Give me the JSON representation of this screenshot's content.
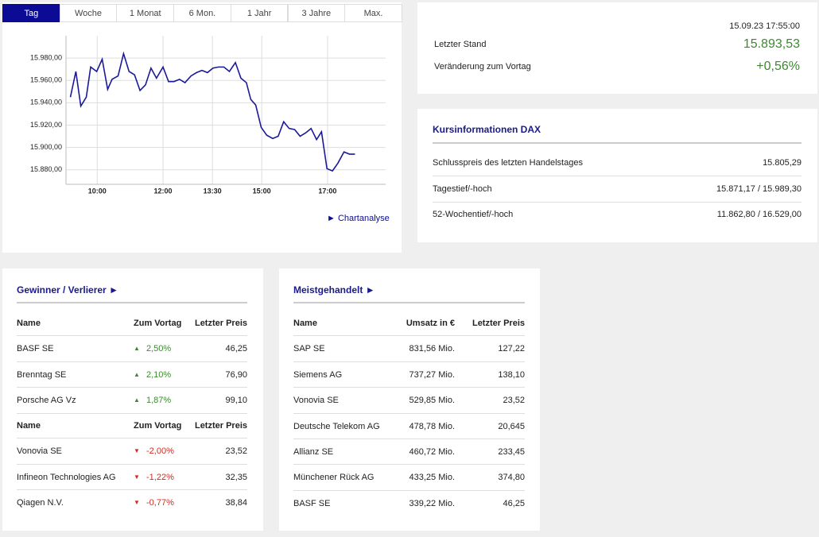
{
  "tabs": [
    "Tag",
    "Woche",
    "1 Monat",
    "6 Mon.",
    "1 Jahr",
    "3 Jahre",
    "Max."
  ],
  "chart_data": {
    "type": "line",
    "x": [
      551,
      561,
      570,
      580,
      588,
      599,
      609,
      619,
      627,
      638,
      648,
      658,
      668,
      678,
      688,
      698,
      708,
      720,
      730,
      740,
      750,
      760,
      771,
      781,
      791,
      801,
      811,
      821,
      831,
      841,
      852,
      862,
      872,
      880,
      889,
      899,
      909,
      920,
      930,
      940,
      950,
      960,
      970,
      980,
      990,
      1000,
      1009,
      1019,
      1029,
      1039,
      1050,
      1060,
      1070
    ],
    "values": [
      15945,
      15968,
      15937,
      15945,
      15972,
      15968,
      15979,
      15952,
      15961,
      15964,
      15984,
      15968,
      15965,
      15951,
      15956,
      15971,
      15962,
      15972,
      15959,
      15959,
      15961,
      15958,
      15964,
      15967,
      15969,
      15967,
      15971,
      15972,
      15972,
      15968,
      15976,
      15962,
      15958,
      15943,
      15938,
      15918,
      15911,
      15908,
      15910,
      15923,
      15917,
      15916,
      15910,
      15913,
      15917,
      15907,
      15914,
      15881,
      15879,
      15886,
      15896,
      15894,
      15894
    ],
    "color": "#1a1a99",
    "xlim": [
      543,
      1126
    ],
    "xticks": [
      {
        "value": 600,
        "label": "10:00"
      },
      {
        "value": 720,
        "label": "12:00"
      },
      {
        "value": 810,
        "label": "13:30"
      },
      {
        "value": 900,
        "label": "15:00"
      },
      {
        "value": 1020,
        "label": "17:00"
      }
    ],
    "ylim": [
      15867,
      16000
    ],
    "yticks": [
      {
        "value": 15880,
        "label": "15.880,00"
      },
      {
        "value": 15900,
        "label": "15.900,00"
      },
      {
        "value": 15920,
        "label": "15.920,00"
      },
      {
        "value": 15940,
        "label": "15.940,00"
      },
      {
        "value": 15960,
        "label": "15.960,00"
      },
      {
        "value": 15980,
        "label": "15.980,00"
      }
    ],
    "grid": true
  },
  "chart_link": "Chartanalyse",
  "quote": {
    "timestamp": "15.09.23 17:55:00",
    "rows": [
      [
        "Letzter Stand",
        "15.893,53"
      ],
      [
        "Veränderung zum Vortag",
        "+0,56%"
      ]
    ]
  },
  "kursinfo": {
    "title": "Kursinformationen DAX",
    "rows": [
      [
        "Schlusspreis des letzten Handelstages",
        "15.805,29"
      ],
      [
        "Tagestief/-hoch",
        "15.871,17 / 15.989,30"
      ],
      [
        "52-Wochentief/-hoch",
        "11.862,80 / 16.529,00"
      ]
    ]
  },
  "movers": {
    "title": "Gewinner / Verlierer",
    "gainers": {
      "header": [
        "Name",
        "Zum Vortag",
        "Letzter Preis"
      ],
      "rows": [
        [
          "BASF SE",
          "2,50%",
          "46,25"
        ],
        [
          "Brenntag SE",
          "2,10%",
          "76,90"
        ],
        [
          "Porsche AG Vz",
          "1,87%",
          "99,10"
        ]
      ]
    },
    "losers": {
      "header": [
        "Name",
        "Zum Vortag",
        "Letzter Preis"
      ],
      "rows": [
        [
          "Vonovia SE",
          "-2,00%",
          "23,52"
        ],
        [
          "Infineon Technologies AG",
          "-1,22%",
          "32,35"
        ],
        [
          "Qiagen N.V.",
          "-0,77%",
          "38,84"
        ]
      ]
    }
  },
  "traded": {
    "title": "Meistgehandelt",
    "header": [
      "Name",
      "Umsatz in €",
      "Letzter Preis"
    ],
    "rows": [
      [
        "SAP SE",
        "831,56 Mio.",
        "127,22"
      ],
      [
        "Siemens AG",
        "737,27 Mio.",
        "138,10"
      ],
      [
        "Vonovia SE",
        "529,85 Mio.",
        "23,52"
      ],
      [
        "Deutsche Telekom AG",
        "478,78 Mio.",
        "20,645"
      ],
      [
        "Allianz SE",
        "460,72 Mio.",
        "233,45"
      ],
      [
        "Münchener Rück AG",
        "433,25 Mio.",
        "374,80"
      ],
      [
        "BASF SE",
        "339,22 Mio.",
        "46,25"
      ]
    ]
  }
}
